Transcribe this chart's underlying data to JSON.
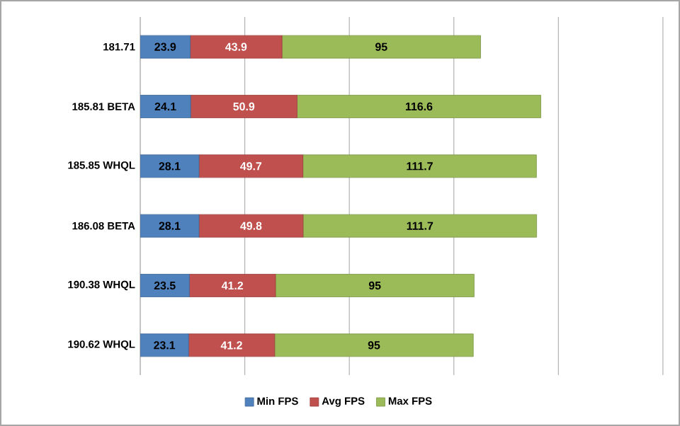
{
  "chart_data": {
    "type": "bar",
    "orientation": "horizontal",
    "stacked": true,
    "categories": [
      "181.71",
      "185.81 BETA",
      "185.85 WHQL",
      "186.08 BETA",
      "190.38 WHQL",
      "190.62 WHQL"
    ],
    "series": [
      {
        "name": "Min FPS",
        "color": "#4f81bd",
        "values": [
          23.9,
          24.1,
          28.1,
          28.1,
          23.5,
          23.1
        ]
      },
      {
        "name": "Avg FPS",
        "color": "#c0504d",
        "values": [
          43.9,
          50.9,
          49.7,
          49.8,
          41.2,
          41.2
        ]
      },
      {
        "name": "Max FPS",
        "color": "#9bbb59",
        "values": [
          95,
          116.6,
          111.7,
          111.7,
          95,
          95
        ]
      }
    ],
    "tick_labels": "y",
    "grid": "x",
    "legend": "bottom",
    "data_labels": true
  }
}
